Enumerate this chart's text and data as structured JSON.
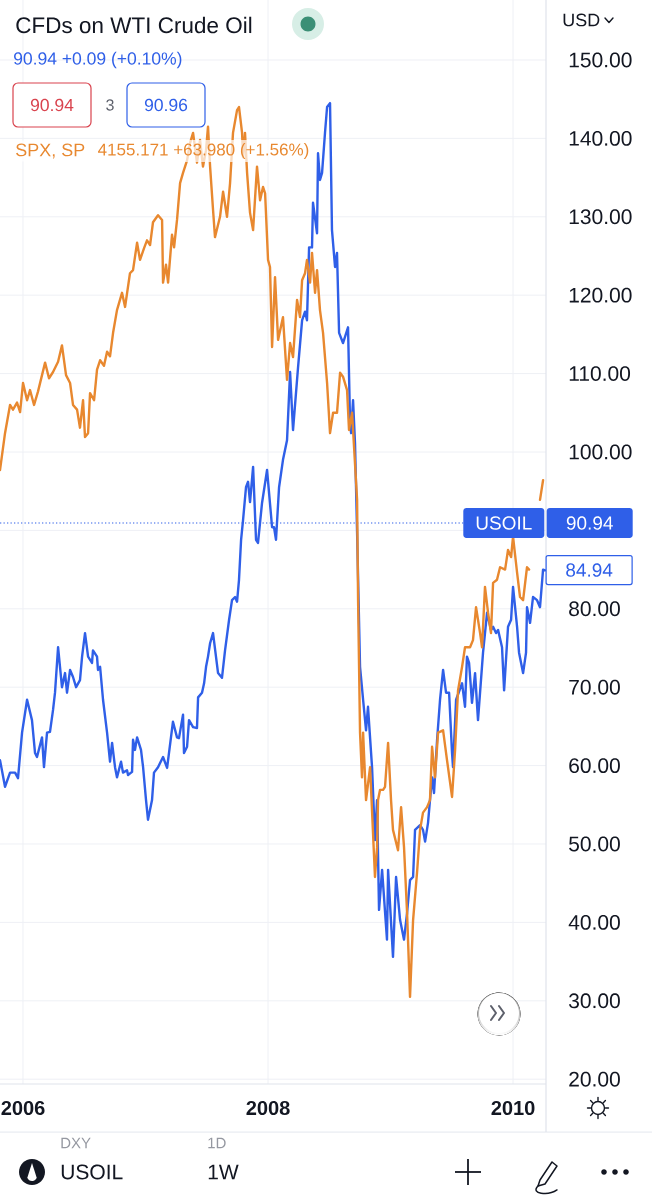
{
  "chart_data": {
    "type": "line",
    "title": "CFDs on WTI Crude Oil",
    "ylabel": "USD",
    "xlim": [
      2005.812,
      2010.269
    ],
    "ylim": [
      19.39,
      157.65
    ],
    "xticks": [
      2006,
      2008,
      2010
    ],
    "yticks": [
      {
        "value": 20,
        "label": "20.00"
      },
      {
        "value": 30,
        "label": "30.00"
      },
      {
        "value": 40,
        "label": "40.00"
      },
      {
        "value": 50,
        "label": "50.00"
      },
      {
        "value": 60,
        "label": "60.00"
      },
      {
        "value": 70,
        "label": "70.00"
      },
      {
        "value": 80,
        "label": "80.00"
      },
      {
        "value": 90,
        "label": null
      },
      {
        "value": 100,
        "label": "100.00"
      },
      {
        "value": 110,
        "label": "110.00"
      },
      {
        "value": 120,
        "label": "120.00"
      },
      {
        "value": 130,
        "label": "130.00"
      },
      {
        "value": 140,
        "label": "140.00"
      },
      {
        "value": 150,
        "label": "150.00"
      }
    ],
    "grid": true,
    "series": [
      {
        "color": "#2f5fe8",
        "x": [
          2005.812,
          2005.853,
          2005.894,
          2005.935,
          2005.959,
          2005.992,
          2006.033,
          2006.073,
          2006.098,
          2006.114,
          2006.155,
          2006.171,
          2006.196,
          2006.22,
          2006.245,
          2006.261,
          2006.286,
          2006.318,
          2006.343,
          2006.359,
          2006.384,
          2006.408,
          2006.433,
          2006.465,
          2006.482,
          2006.506,
          2006.531,
          2006.563,
          2006.571,
          2006.604,
          2006.612,
          2006.629,
          2006.653,
          2006.686,
          2006.71,
          2006.727,
          2006.751,
          2006.767,
          2006.8,
          2006.816,
          2006.849,
          2006.857,
          2006.89,
          2006.898,
          2006.914,
          2006.931,
          2006.963,
          2006.98,
          2007.004,
          2007.02,
          2007.053,
          2007.069,
          2007.102,
          2007.143,
          2007.176,
          2007.224,
          2007.257,
          2007.273,
          2007.306,
          2007.314,
          2007.339,
          2007.355,
          2007.388,
          2007.42,
          2007.429,
          2007.461,
          2007.478,
          2007.494,
          2007.51,
          2007.527,
          2007.551,
          2007.592,
          2007.624,
          2007.649,
          2007.682,
          2007.706,
          2007.731,
          2007.747,
          2007.763,
          2007.78,
          2007.796,
          2007.82,
          2007.837,
          2007.853,
          2007.878,
          2007.902,
          2007.918,
          2007.951,
          2007.992,
          2008.033,
          2008.049,
          2008.065,
          2008.09,
          2008.122,
          2008.155,
          2008.18,
          2008.204,
          2008.245,
          2008.278,
          2008.302,
          2008.318,
          2008.335,
          2008.359,
          2008.367,
          2008.4,
          2008.408,
          2008.424,
          2008.441,
          2008.465,
          2008.482,
          2008.506,
          2008.522,
          2008.547,
          2008.563,
          2008.58,
          2008.612,
          2008.653,
          2008.669,
          2008.678,
          2008.694,
          2008.71,
          2008.727,
          2008.751,
          2008.776,
          2008.8,
          2008.816,
          2008.849,
          2008.873,
          2008.89,
          2008.906,
          2008.931,
          2008.971,
          2008.98,
          2009.02,
          2009.045,
          2009.078,
          2009.11,
          2009.135,
          2009.159,
          2009.184,
          2009.2,
          2009.241,
          2009.265,
          2009.282,
          2009.306,
          2009.322,
          2009.339,
          2009.355,
          2009.38,
          2009.404,
          2009.429,
          2009.453,
          2009.478,
          2009.502,
          2009.51,
          2009.535,
          2009.584,
          2009.608,
          2009.624,
          2009.641,
          2009.665,
          2009.69,
          2009.714,
          2009.755,
          2009.788,
          2009.82,
          2009.837,
          2009.861,
          2009.878,
          2009.91,
          2009.927,
          2009.959,
          2009.984,
          2010.0,
          2010.033,
          2010.049,
          2010.082,
          2010.106,
          2010.114,
          2010.139,
          2010.163,
          2010.196,
          2010.22,
          2010.245,
          2010.261
        ],
        "values": [
          60.7,
          57.3,
          59.1,
          59.1,
          58.4,
          64.2,
          68.4,
          65.8,
          61.6,
          61.1,
          63.6,
          59.8,
          64.2,
          64.3,
          67.1,
          69.3,
          75.1,
          70.0,
          71.8,
          69.3,
          72.2,
          71.3,
          70.0,
          70.9,
          73.9,
          76.9,
          73.9,
          73.1,
          74.7,
          73.9,
          72.2,
          72.6,
          68.4,
          64.2,
          60.5,
          62.9,
          59.8,
          58.5,
          60.5,
          59.1,
          59.4,
          58.8,
          59.2,
          63.3,
          62.0,
          63.6,
          62.0,
          59.8,
          55.6,
          53.1,
          55.6,
          59.1,
          59.8,
          61.1,
          59.7,
          65.6,
          63.6,
          63.5,
          66.5,
          61.6,
          62.4,
          65.8,
          64.9,
          64.8,
          68.7,
          69.3,
          70.5,
          72.6,
          73.9,
          75.6,
          76.9,
          71.8,
          71.2,
          74.7,
          78.6,
          81.1,
          81.5,
          80.9,
          83.7,
          88.8,
          91.3,
          95.5,
          96.2,
          93.6,
          98.1,
          88.8,
          88.4,
          93.5,
          97.7,
          90.4,
          90.4,
          88.8,
          95.5,
          99.0,
          101.5,
          110.2,
          102.8,
          110.8,
          116.8,
          117.9,
          116.8,
          126.1,
          126.1,
          131.8,
          127.9,
          138.1,
          134.7,
          135.6,
          140.7,
          144.0,
          144.5,
          128.3,
          123.6,
          125.4,
          115.2,
          113.9,
          115.9,
          104.1,
          102.4,
          106.6,
          101.1,
          89.7,
          72.6,
          68.4,
          64.5,
          67.5,
          59.8,
          50.5,
          55.6,
          41.6,
          46.7,
          37.8,
          46.7,
          35.6,
          45.8,
          40.3,
          37.8,
          41.2,
          45.4,
          45.8,
          51.8,
          52.4,
          51.8,
          50.3,
          52.7,
          55.6,
          58.5,
          56.5,
          63.3,
          68.4,
          72.2,
          69.3,
          69.3,
          61.6,
          59.8,
          68.4,
          70.5,
          67.5,
          73.9,
          73.1,
          68.0,
          71.8,
          65.8,
          74.4,
          79.5,
          77.3,
          77.7,
          76.9,
          77.3,
          75.1,
          69.6,
          77.7,
          78.6,
          82.8,
          77.7,
          74.4,
          71.8,
          74.4,
          80.2,
          78.2,
          81.5,
          81.1,
          80.2,
          85.0,
          84.9
        ]
      },
      {
        "name": "SPX, SP",
        "color": "#e8882f",
        "x": [
          2005.812,
          2005.853,
          2005.894,
          2005.918,
          2005.951,
          2005.976,
          2006.0,
          2006.033,
          2006.057,
          2006.09,
          2006.122,
          2006.18,
          2006.212,
          2006.245,
          2006.286,
          2006.318,
          2006.351,
          2006.384,
          2006.408,
          2006.441,
          2006.465,
          2006.49,
          2006.506,
          2006.531,
          2006.547,
          2006.58,
          2006.604,
          2006.629,
          2006.661,
          2006.686,
          2006.71,
          2006.735,
          2006.767,
          2006.808,
          2006.833,
          2006.873,
          2006.898,
          2006.931,
          2006.955,
          2006.988,
          2007.012,
          2007.037,
          2007.061,
          2007.102,
          2007.135,
          2007.143,
          2007.167,
          2007.184,
          2007.216,
          2007.233,
          2007.257,
          2007.282,
          2007.306,
          2007.339,
          2007.363,
          2007.388,
          2007.42,
          2007.445,
          2007.469,
          2007.494,
          2007.51,
          2007.527,
          2007.551,
          2007.567,
          2007.608,
          2007.633,
          2007.665,
          2007.69,
          2007.714,
          2007.747,
          2007.763,
          2007.788,
          2007.796,
          2007.812,
          2007.829,
          2007.853,
          2007.878,
          2007.91,
          2007.935,
          2007.959,
          2007.976,
          2008.0,
          2008.016,
          2008.033,
          2008.057,
          2008.082,
          2008.122,
          2008.155,
          2008.18,
          2008.204,
          2008.237,
          2008.261,
          2008.278,
          2008.302,
          2008.318,
          2008.343,
          2008.359,
          2008.384,
          2008.4,
          2008.424,
          2008.449,
          2008.482,
          2008.506,
          2008.531,
          2008.563,
          2008.588,
          2008.612,
          2008.645,
          2008.661,
          2008.686,
          2008.727,
          2008.735,
          2008.751,
          2008.767,
          2008.776,
          2008.8,
          2008.833,
          2008.873,
          2008.89,
          2008.898,
          2008.914,
          2008.939,
          2008.955,
          2008.98,
          2009.004,
          2009.02,
          2009.061,
          2009.086,
          2009.11,
          2009.135,
          2009.159,
          2009.184,
          2009.216,
          2009.241,
          2009.265,
          2009.298,
          2009.322,
          2009.339,
          2009.363,
          2009.388,
          2009.429,
          2009.461,
          2009.502,
          2009.527,
          2009.551,
          2009.584,
          2009.608,
          2009.649,
          2009.673,
          2009.698,
          2009.731,
          2009.747,
          2009.771,
          2009.796,
          2009.82,
          2009.837,
          2009.869,
          2009.894,
          2009.935,
          2009.959,
          2009.984,
          2010.0,
          2010.033,
          2010.057,
          2010.082,
          2010.114,
          2010.131,
          2010.155,
          2010.18,
          2010.22,
          2010.245
        ],
        "values": [
          97.7,
          102.4,
          106.0,
          105.4,
          106.3,
          105.1,
          108.8,
          106.6,
          107.9,
          106.0,
          107.7,
          111.4,
          109.4,
          110.2,
          111.5,
          113.6,
          109.8,
          108.8,
          106.0,
          105.4,
          103.1,
          106.6,
          101.9,
          102.4,
          107.5,
          106.6,
          110.5,
          111.7,
          111.0,
          112.8,
          112.2,
          115.2,
          118.1,
          120.3,
          118.5,
          122.8,
          123.2,
          126.7,
          124.5,
          126.0,
          127.0,
          126.4,
          129.3,
          130.2,
          129.6,
          121.6,
          123.9,
          121.6,
          127.7,
          126.1,
          129.6,
          134.3,
          135.6,
          137.2,
          139.4,
          140.7,
          136.9,
          139.8,
          136.4,
          138.5,
          141.5,
          136.4,
          130.9,
          127.4,
          130.0,
          133.2,
          130.0,
          134.3,
          140.7,
          143.6,
          144.0,
          140.7,
          137.6,
          140.7,
          135.6,
          130.5,
          128.3,
          136.4,
          132.1,
          133.8,
          133.0,
          124.5,
          123.6,
          113.4,
          122.3,
          114.3,
          117.2,
          109.2,
          113.9,
          112.1,
          119.4,
          117.2,
          121.9,
          122.8,
          124.5,
          121.6,
          125.4,
          120.3,
          123.2,
          118.1,
          115.2,
          108.8,
          102.4,
          105.0,
          105.0,
          110.1,
          109.6,
          107.9,
          102.8,
          105.0,
          93.9,
          81.1,
          64.2,
          58.5,
          64.2,
          55.6,
          59.8,
          45.8,
          49.6,
          55.6,
          56.9,
          56.9,
          57.3,
          62.9,
          55.6,
          51.8,
          49.2,
          54.7,
          49.6,
          41.2,
          30.5,
          40.3,
          46.3,
          51.8,
          54.0,
          54.7,
          55.6,
          62.4,
          58.5,
          64.2,
          64.5,
          60.7,
          56.0,
          62.0,
          69.6,
          72.6,
          75.1,
          75.1,
          76.0,
          80.2,
          76.9,
          75.1,
          82.8,
          79.5,
          76.9,
          83.3,
          83.7,
          85.3,
          85.0,
          87.5,
          86.6,
          89.2,
          84.6,
          81.5,
          81.1,
          85.3,
          85.0,
          null,
          null,
          93.9,
          96.4
        ]
      }
    ],
    "ref_lines": [
      {
        "axis": "y",
        "value": 90.94,
        "label": "USOIL",
        "color": "#2f5fe8",
        "line_style": "dotted"
      }
    ],
    "annotations": [
      "90.94 +0.09 (+0.10%)",
      "90.94",
      "3",
      "90.96",
      "4155.171 +63.980 (+1.56%)",
      "90.94",
      {
        "text": "84.94",
        "x": 2010.261,
        "y": 84.94
      },
      "USOIL",
      "1W",
      "DXY",
      "1D"
    ]
  }
}
